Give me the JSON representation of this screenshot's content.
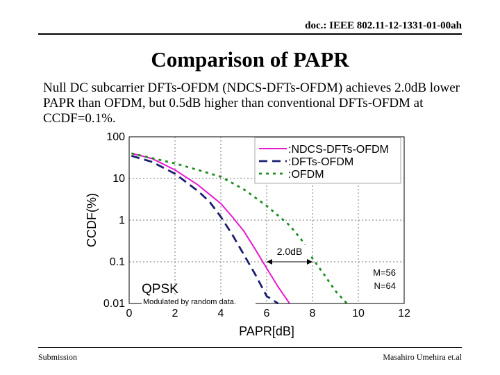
{
  "header": {
    "doc_id": "doc.: IEEE 802.11-12-1331-01-00ah"
  },
  "title": "Comparison of PAPR",
  "body_text": "Null DC subcarrier DFTs-OFDM (NDCS-DFTs-OFDM) achieves 2.0dB lower PAPR than OFDM, but 0.5dB higher than conventional DFTs-OFDM at CCDF=0.1%.",
  "footer": {
    "left": "Submission",
    "right": "Masahiro Umehira et.al"
  },
  "colors": {
    "ndcs": "#e619d0",
    "dfts": "#1a1f6e",
    "ofdm": "#1e8c1e"
  },
  "chart_data": {
    "type": "line",
    "xlabel": "PAPR[dB]",
    "ylabel": "CCDF(%)",
    "xlim": [
      0,
      12
    ],
    "ylim": [
      0.01,
      100
    ],
    "y_scale": "log",
    "grid": true,
    "x_ticks": [
      "0",
      "2",
      "4",
      "6",
      "8",
      "10",
      "12"
    ],
    "y_ticks": [
      "0.01",
      "0.1",
      "1",
      "10",
      "100"
    ],
    "legend_position": "top-right",
    "series": [
      {
        "name": ":NDCS-DFTs-OFDM",
        "style": "solid",
        "x": [
          0.1,
          1,
          2,
          3,
          4,
          4.5,
          5,
          5.5,
          6,
          6.5,
          7
        ],
        "y": [
          40,
          30,
          16,
          7,
          2.5,
          1.2,
          0.55,
          0.2,
          0.07,
          0.025,
          0.01
        ]
      },
      {
        "name": ":DFTs-OFDM",
        "style": "dashed",
        "x": [
          0.1,
          1,
          2,
          3,
          3.5,
          4,
          4.5,
          5,
          5.5,
          6,
          6.5
        ],
        "y": [
          35,
          25,
          13,
          5,
          2.8,
          1.2,
          0.45,
          0.15,
          0.05,
          0.015,
          0.01
        ]
      },
      {
        "name": ":OFDM",
        "style": "dotted",
        "x": [
          0.1,
          2,
          3,
          4,
          5,
          6,
          7,
          7.5,
          8,
          8.5,
          9,
          9.5
        ],
        "y": [
          40,
          23,
          16,
          11,
          5.5,
          2.2,
          0.75,
          0.35,
          0.12,
          0.05,
          0.02,
          0.01
        ]
      }
    ],
    "annotations": {
      "delta_label": "2.0dB",
      "delta_from_x": 6,
      "delta_to_x": 8,
      "delta_at_y": 0.1,
      "modulation": "QPSK",
      "note": "Modulated by random data.",
      "m_label": "M=56",
      "n_label": "N=64"
    }
  }
}
